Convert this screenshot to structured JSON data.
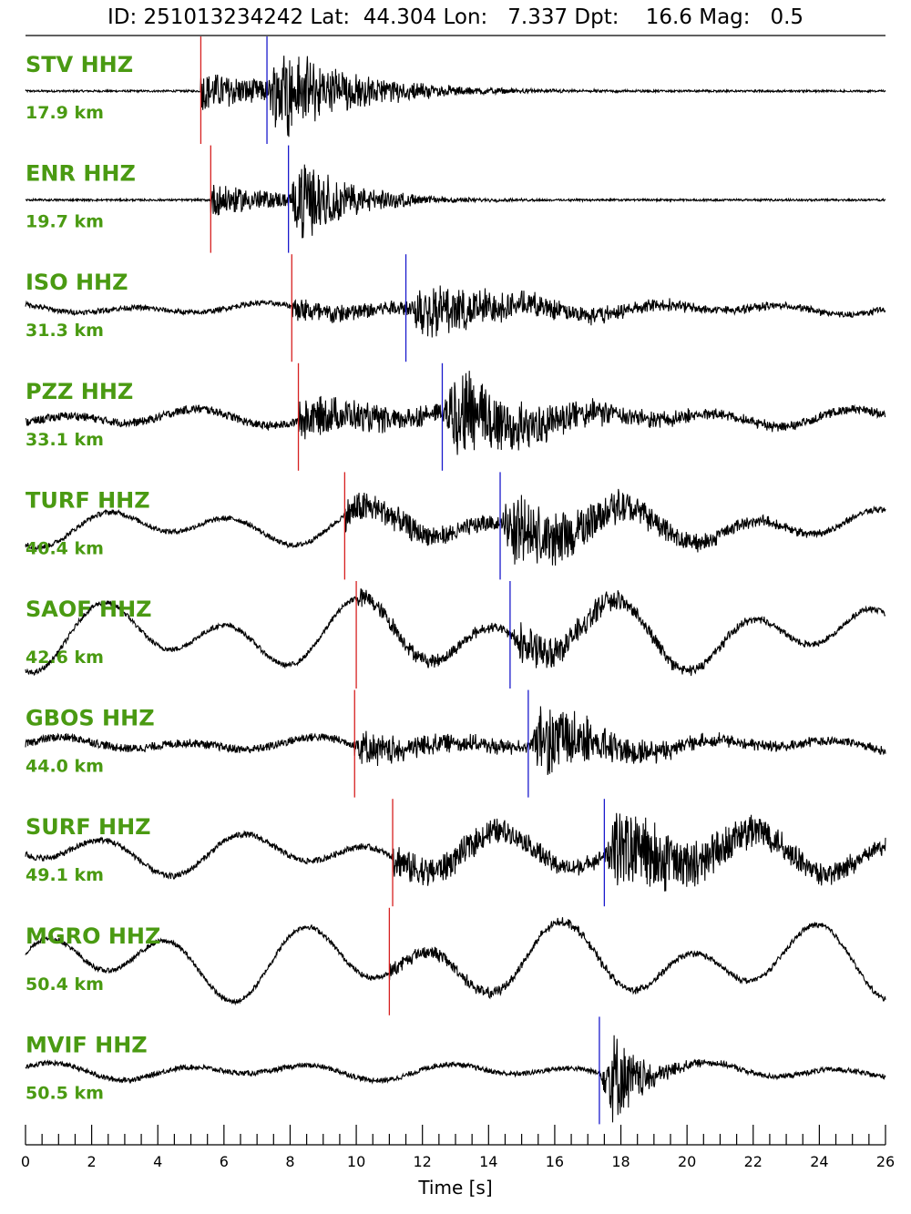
{
  "header": {
    "title": "ID: 251013234242 Lat:  44.304 Lon:   7.337 Dpt:    16.6 Mag:   0.5"
  },
  "chart_data": {
    "type": "line",
    "title": "ID: 251013234242 Lat:  44.304 Lon:   7.337 Dpt:    16.6 Mag:   0.5",
    "xlabel": "Time [s]",
    "ylabel": "",
    "xlim": [
      0,
      26
    ],
    "x_ticks": [
      "0",
      "2",
      "4",
      "6",
      "8",
      "10",
      "12",
      "14",
      "16",
      "18",
      "20",
      "22",
      "24",
      "26"
    ],
    "minor_tick_step": 0.5,
    "grid": false,
    "colors": {
      "station_label": "#4a9a12",
      "p_pick": "#d62020",
      "s_pick": "#1a1acc",
      "trace": "#000000"
    },
    "series": [
      {
        "name": "STV HHZ",
        "distance": "17.9 km",
        "p_pick": 5.3,
        "s_pick": 7.3,
        "noise": 0.02,
        "burst": 0.85,
        "decay": 2.2,
        "lowfreq": 0.0
      },
      {
        "name": "ENR HHZ",
        "distance": "19.7 km",
        "p_pick": 5.6,
        "s_pick": 7.95,
        "noise": 0.02,
        "burst": 0.75,
        "decay": 1.6,
        "lowfreq": 0.0
      },
      {
        "name": "ISO HHZ",
        "distance": "31.3 km",
        "p_pick": 8.05,
        "s_pick": 11.5,
        "noise": 0.05,
        "burst": 0.5,
        "decay": 4.0,
        "lowfreq": 0.12
      },
      {
        "name": "PZZ HHZ",
        "distance": "33.1 km",
        "p_pick": 8.25,
        "s_pick": 12.6,
        "noise": 0.08,
        "burst": 0.85,
        "decay": 3.0,
        "lowfreq": 0.18
      },
      {
        "name": "TURF HHZ",
        "distance": "40.4 km",
        "p_pick": 9.65,
        "s_pick": 14.35,
        "noise": 0.05,
        "burst": 0.7,
        "decay": 3.5,
        "lowfreq": 0.4
      },
      {
        "name": "SAOF HHZ",
        "distance": "42.6 km",
        "p_pick": 10.0,
        "s_pick": 14.65,
        "noise": 0.05,
        "burst": 0.4,
        "decay": 3.0,
        "lowfreq": 0.75
      },
      {
        "name": "GBOS HHZ",
        "distance": "44.0 km",
        "p_pick": 9.95,
        "s_pick": 15.2,
        "noise": 0.08,
        "burst": 0.7,
        "decay": 2.5,
        "lowfreq": 0.15
      },
      {
        "name": "SURF HHZ",
        "distance": "49.1 km",
        "p_pick": 11.1,
        "s_pick": 17.5,
        "noise": 0.06,
        "burst": 0.75,
        "decay": 4.5,
        "lowfreq": 0.45
      },
      {
        "name": "MGRO HHZ",
        "distance": "50.4 km",
        "p_pick": 11.0,
        "s_pick": null,
        "noise": 0.05,
        "burst": 0.3,
        "decay": 4.0,
        "lowfreq": 0.8
      },
      {
        "name": "MVIF HHZ",
        "distance": "50.5 km",
        "p_pick": null,
        "s_pick": 17.35,
        "noise": 0.05,
        "burst": 0.95,
        "decay": 0.9,
        "lowfreq": 0.18
      }
    ]
  }
}
